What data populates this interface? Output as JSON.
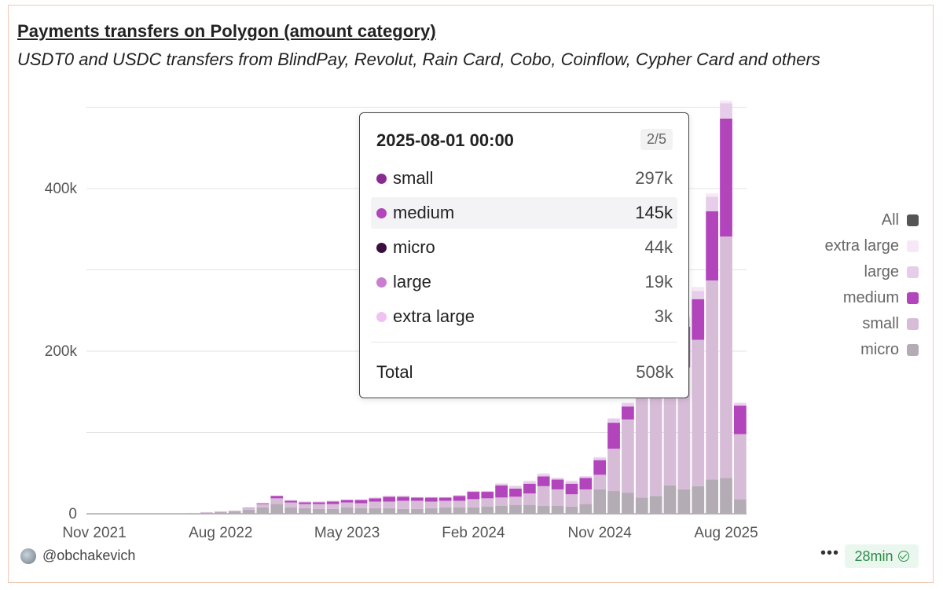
{
  "title": "Payments transfers on Polygon (amount category)",
  "subtitle": "USDT0 and USDC transfers from BlindPay, Revolut, Rain Card, Cobo, Coinflow, Cypher Card and others",
  "chart_data": {
    "type": "bar",
    "stacked": true,
    "title": "Payments transfers on Polygon (amount category)",
    "subtitle": "USDT0 and USDC transfers from BlindPay, Revolut, Rain Card, Cobo, Coinflow, Cypher Card and others",
    "ylim": [
      0,
      500000
    ],
    "yticks": [
      {
        "value": 0,
        "label": "0"
      },
      {
        "value": 200000,
        "label": "200k"
      },
      {
        "value": 400000,
        "label": "400k"
      }
    ],
    "xtick_labels": [
      {
        "month": "2021-11",
        "label": "Nov 2021"
      },
      {
        "month": "2022-08",
        "label": "Aug 2022"
      },
      {
        "month": "2023-05",
        "label": "May 2023"
      },
      {
        "month": "2024-02",
        "label": "Feb 2024"
      },
      {
        "month": "2024-11",
        "label": "Nov 2024"
      },
      {
        "month": "2025-08",
        "label": "Aug 2025"
      }
    ],
    "grid": true,
    "legend_position": "right",
    "categories": [
      "2022-06",
      "2022-07",
      "2022-08",
      "2022-09",
      "2022-10",
      "2022-11",
      "2022-12",
      "2023-01",
      "2023-02",
      "2023-03",
      "2023-04",
      "2023-05",
      "2023-06",
      "2023-07",
      "2023-08",
      "2023-09",
      "2023-10",
      "2023-11",
      "2023-12",
      "2024-01",
      "2024-02",
      "2024-03",
      "2024-04",
      "2024-05",
      "2024-06",
      "2024-07",
      "2024-08",
      "2024-09",
      "2024-10",
      "2024-11",
      "2024-12",
      "2025-01",
      "2025-02",
      "2025-03",
      "2025-04",
      "2025-05",
      "2025-06",
      "2025-07",
      "2025-08",
      "2025-09"
    ],
    "series": [
      {
        "name": "micro",
        "color": "#b4acb4",
        "values": [
          500,
          1000,
          2000,
          3000,
          5000,
          8000,
          12000,
          8000,
          7000,
          6000,
          6000,
          8000,
          7000,
          7000,
          7000,
          6000,
          6000,
          7000,
          8000,
          8000,
          8000,
          9000,
          10000,
          11000,
          11000,
          10000,
          10000,
          9000,
          12000,
          30000,
          28000,
          26000,
          20000,
          22000,
          35000,
          30000,
          34000,
          42000,
          44000,
          18000
        ]
      },
      {
        "name": "small",
        "color": "#d7bcd8",
        "values": [
          500,
          1000,
          1000,
          1000,
          2000,
          4000,
          7000,
          6000,
          5000,
          6000,
          6000,
          6000,
          6000,
          8000,
          8000,
          10000,
          10000,
          8000,
          8000,
          8000,
          10000,
          10000,
          10000,
          10000,
          14000,
          24000,
          20000,
          15000,
          18000,
          18000,
          52000,
          90000,
          140000,
          150000,
          150000,
          150000,
          180000,
          245000,
          297000,
          80000
        ]
      },
      {
        "name": "medium",
        "color": "#b244bc",
        "values": [
          0,
          0,
          0,
          0,
          500,
          1000,
          3000,
          2000,
          2000,
          2000,
          3000,
          3000,
          4000,
          4000,
          6000,
          5000,
          4000,
          5000,
          4000,
          6000,
          9000,
          8000,
          15000,
          10000,
          12000,
          12000,
          12000,
          13000,
          14000,
          18000,
          32000,
          16000,
          15000,
          15000,
          28000,
          50000,
          50000,
          85000,
          145000,
          35000
        ]
      },
      {
        "name": "large",
        "color": "#e6cde9",
        "values": [
          0,
          0,
          0,
          0,
          0,
          0,
          500,
          1000,
          1000,
          1000,
          1000,
          500,
          500,
          1000,
          1000,
          1000,
          500,
          500,
          500,
          1000,
          1000,
          1000,
          2000,
          3000,
          3000,
          3000,
          2000,
          3000,
          2000,
          3000,
          5000,
          4000,
          2000,
          5000,
          8000,
          10000,
          10000,
          18000,
          19000,
          3000
        ]
      },
      {
        "name": "extra large",
        "color": "#f6e8f7",
        "values": [
          0,
          0,
          0,
          0,
          0,
          0,
          0,
          500,
          500,
          500,
          500,
          0,
          500,
          500,
          500,
          500,
          0,
          0,
          0,
          0,
          500,
          500,
          1000,
          1000,
          1000,
          1000,
          500,
          1000,
          500,
          1000,
          1000,
          1000,
          1000,
          1000,
          2000,
          3000,
          5000,
          4000,
          3000,
          1000
        ]
      }
    ]
  },
  "legend": [
    {
      "label": "All",
      "color": "#555555"
    },
    {
      "label": "extra large",
      "color": "#f6e8f7"
    },
    {
      "label": "large",
      "color": "#e6cde9"
    },
    {
      "label": "medium",
      "color": "#b244bc"
    },
    {
      "label": "small",
      "color": "#d7bcd8"
    },
    {
      "label": "micro",
      "color": "#b4acb4"
    }
  ],
  "tooltip": {
    "date": "2025-08-01 00:00",
    "page": "2/5",
    "rows": [
      {
        "label": "small",
        "value": "297k",
        "color": "#8a2b91"
      },
      {
        "label": "medium",
        "value": "145k",
        "color": "#b244bc"
      },
      {
        "label": "micro",
        "value": "44k",
        "color": "#3b0f3d"
      },
      {
        "label": "large",
        "value": "19k",
        "color": "#c97ed0"
      },
      {
        "label": "extra large",
        "value": "3k",
        "color": "#f0c2f3"
      }
    ],
    "total_label": "Total",
    "total_value": "508k"
  },
  "footer": {
    "username": "@obchakevich",
    "more": "•••",
    "refresh": "28min"
  }
}
